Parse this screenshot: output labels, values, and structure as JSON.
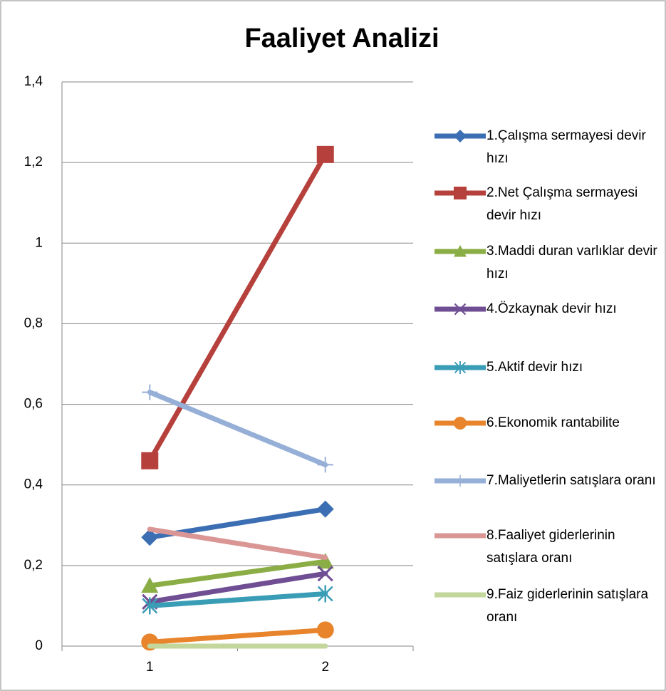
{
  "chart_data": {
    "type": "line",
    "title": "Faaliyet Analizi",
    "categories": [
      "1",
      "2"
    ],
    "ylim": [
      0,
      1.4
    ],
    "yticks": [
      0,
      {
        "value": 0.2,
        "label": "0,2"
      },
      {
        "value": 0.4,
        "label": "0,4"
      },
      {
        "value": 0.6,
        "label": "0,6"
      },
      {
        "value": 0.8,
        "label": "0,8"
      },
      1,
      {
        "value": 1.2,
        "label": "1,2"
      },
      {
        "value": 1.4,
        "label": "1,4"
      }
    ],
    "grid": true,
    "legend": "right",
    "series": [
      {
        "name": "1.Çalışma sermayesi devir hızı",
        "color": "#3c6eb4",
        "marker": "diamond",
        "values": [
          0.27,
          0.34
        ]
      },
      {
        "name": "2.Net Çalışma sermayesi devir hızı",
        "color": "#b6403b",
        "marker": "square",
        "values": [
          0.46,
          1.22
        ]
      },
      {
        "name": "3.Maddi duran varlıklar devir hızı",
        "color": "#8bad45",
        "marker": "triangle",
        "values": [
          0.15,
          0.21
        ]
      },
      {
        "name": "4.Özkaynak devir hızı",
        "color": "#6f4e93",
        "marker": "x",
        "values": [
          0.11,
          0.18
        ]
      },
      {
        "name": "5.Aktif devir hızı",
        "color": "#3a9db6",
        "marker": "asterisk",
        "values": [
          0.1,
          0.13
        ]
      },
      {
        "name": "6.Ekonomik rantabilite",
        "color": "#e8842c",
        "marker": "circle",
        "values": [
          0.01,
          0.04
        ]
      },
      {
        "name": "7.Maliyetlerin satışlara oranı",
        "color": "#95afd7",
        "marker": "plus",
        "values": [
          0.63,
          0.45
        ]
      },
      {
        "name": "8.Faaliyet giderlerinin satışlara oranı",
        "color": "#d99694",
        "marker": "none",
        "values": [
          0.29,
          0.22
        ]
      },
      {
        "name": "9.Faiz giderlerinin satışlara oranı",
        "color": "#c3d69b",
        "marker": "none",
        "values": [
          0.0,
          0.0
        ]
      }
    ]
  }
}
